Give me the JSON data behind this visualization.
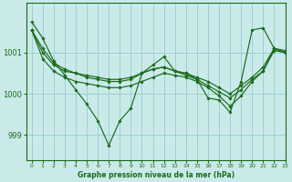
{
  "title": "Graphe pression niveau de la mer (hPa)",
  "bg_color": "#caeaea",
  "grid_color": "#9ecfcf",
  "line_color": "#1a6b1a",
  "xlim": [
    -0.5,
    23
  ],
  "ylim": [
    998.4,
    1002.2
  ],
  "yticks": [
    999,
    1000,
    1001
  ],
  "xticks": [
    0,
    1,
    2,
    3,
    4,
    5,
    6,
    7,
    8,
    9,
    10,
    11,
    12,
    13,
    14,
    15,
    16,
    17,
    18,
    19,
    20,
    21,
    22,
    23
  ],
  "series": [
    [
      1001.75,
      1001.35,
      1000.8,
      1000.45,
      1000.1,
      999.75,
      999.35,
      998.75,
      999.35,
      999.65,
      1000.5,
      1000.7,
      1000.9,
      1000.55,
      1000.5,
      1000.35,
      999.9,
      999.85,
      999.55,
      1000.3,
      1001.55,
      1001.6,
      1001.1,
      1001.05
    ],
    [
      1001.55,
      1001.1,
      1000.75,
      1000.6,
      1000.5,
      1000.4,
      1000.35,
      1000.3,
      1000.3,
      1000.35,
      1000.5,
      1000.6,
      1000.65,
      1000.55,
      1000.45,
      1000.35,
      1000.2,
      1000.05,
      999.9,
      1000.1,
      1000.35,
      1000.55,
      1001.05,
      1001.0
    ],
    [
      1001.55,
      1001.0,
      1000.7,
      1000.55,
      1000.5,
      1000.45,
      1000.4,
      1000.35,
      1000.35,
      1000.4,
      1000.5,
      1000.6,
      1000.65,
      1000.55,
      1000.5,
      1000.4,
      1000.3,
      1000.15,
      1000.0,
      1000.2,
      1000.4,
      1000.65,
      1001.1,
      1001.0
    ],
    [
      1001.55,
      1000.85,
      1000.55,
      1000.4,
      1000.3,
      1000.25,
      1000.2,
      1000.15,
      1000.15,
      1000.2,
      1000.3,
      1000.4,
      1000.5,
      1000.45,
      1000.4,
      1000.3,
      1000.15,
      999.95,
      999.7,
      999.95,
      1000.3,
      1000.55,
      1001.1,
      1001.0
    ]
  ]
}
